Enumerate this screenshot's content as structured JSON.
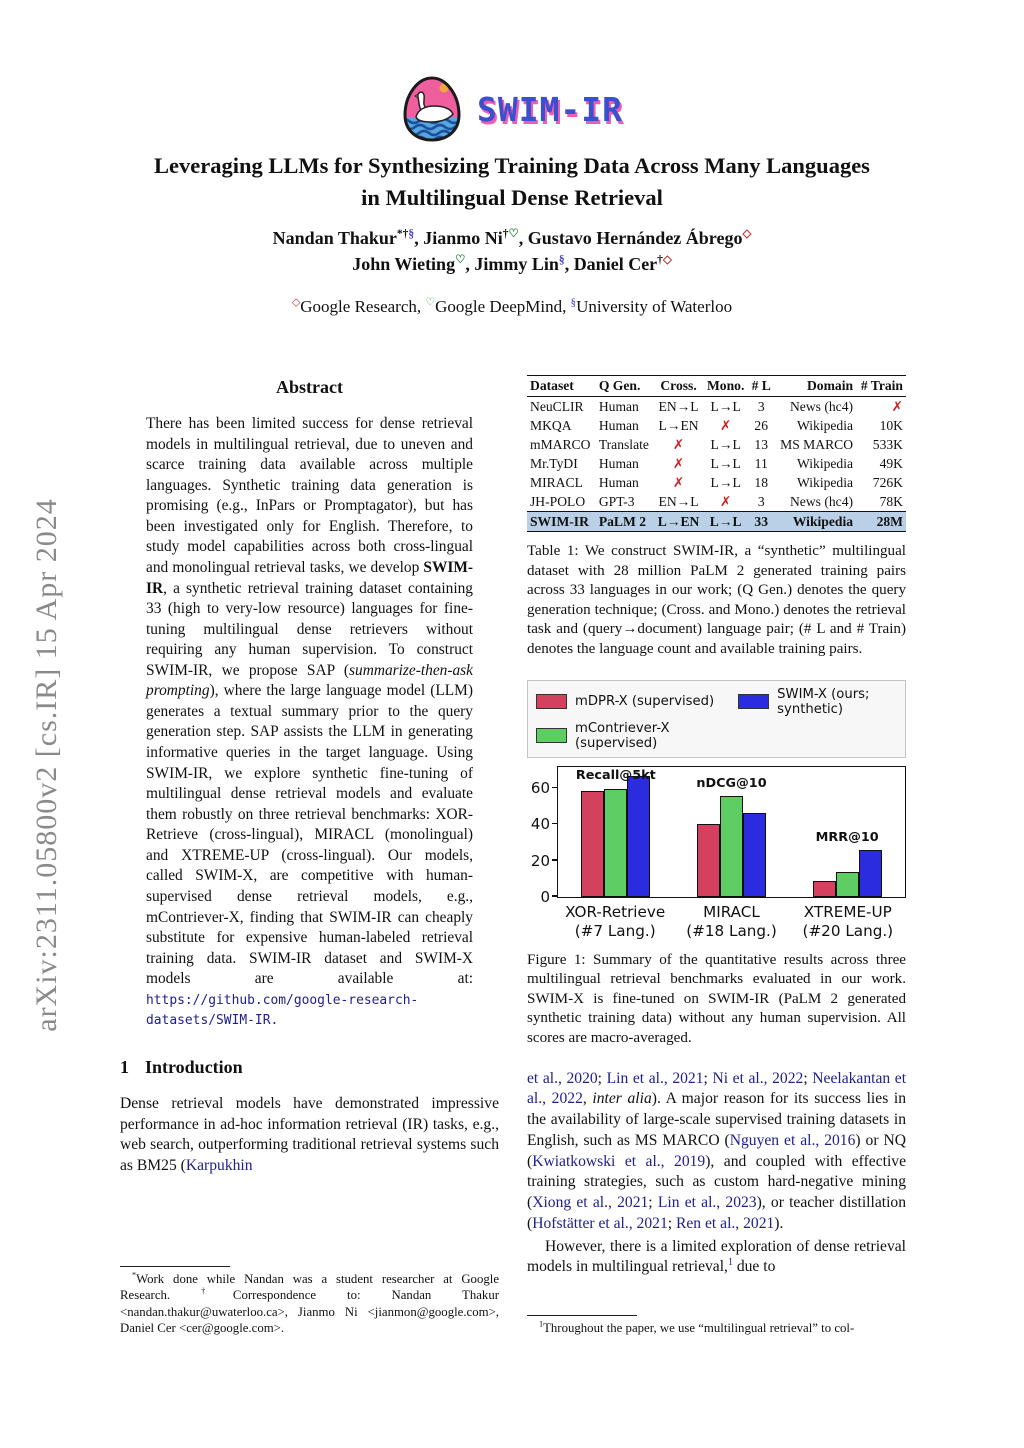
{
  "arxiv_watermark": "arXiv:2311.05800v2  [cs.IR]  15 Apr 2024",
  "logo": {
    "name": "SWIM-IR"
  },
  "header": {
    "title_line1": "Leveraging LLMs for Synthesizing Training Data Across Many Languages",
    "title_line2": "in Multilingual Dense Retrieval",
    "authors_line1": [
      {
        "t": "Nandan Thakur",
        "c": "bold"
      },
      {
        "t": "*†",
        "c": "sup"
      },
      {
        "t": "§",
        "c": "sup sym-blue"
      },
      {
        "t": ", ",
        "c": "bold"
      },
      {
        "t": "Jianmo Ni",
        "c": "bold"
      },
      {
        "t": "†",
        "c": "sup"
      },
      {
        "t": "♡",
        "c": "sup sym-green"
      },
      {
        "t": ", ",
        "c": "bold"
      },
      {
        "t": "Gustavo Hernández Ábrego",
        "c": "bold"
      },
      {
        "t": "◇",
        "c": "sup sym-red"
      }
    ],
    "authors_line2": [
      {
        "t": "John Wieting",
        "c": "bold"
      },
      {
        "t": "♡",
        "c": "sup sym-green"
      },
      {
        "t": ", ",
        "c": "bold"
      },
      {
        "t": "Jimmy Lin",
        "c": "bold"
      },
      {
        "t": "§",
        "c": "sup sym-blue"
      },
      {
        "t": ", ",
        "c": "bold"
      },
      {
        "t": "Daniel Cer",
        "c": "bold"
      },
      {
        "t": "†",
        "c": "sup"
      },
      {
        "t": "◇",
        "c": "sup sym-red"
      }
    ],
    "affiliations": [
      {
        "t": "◇",
        "c": "sup sym-red"
      },
      {
        "t": "Google Research, "
      },
      {
        "t": "♡",
        "c": "sup sym-green"
      },
      {
        "t": "Google DeepMind, "
      },
      {
        "t": "§",
        "c": "sup sym-blue"
      },
      {
        "t": "University of Waterloo"
      }
    ]
  },
  "abstract": {
    "heading": "Abstract",
    "runs": [
      {
        "t": "There has been limited success for dense retrieval models in multilingual retrieval, due to uneven and scarce training data available across multiple languages. Synthetic training data generation is promising (e.g., InPars or Promptagator), but has been investigated only for English. Therefore, to study model capabilities across both cross-lingual and monolingual retrieval tasks, we develop "
      },
      {
        "t": "SWIM-IR",
        "c": "bold"
      },
      {
        "t": ", a synthetic retrieval training dataset containing 33 (high to very-low resource) languages for fine-tuning multilingual dense retrievers without requiring any human supervision. To construct SWIM-IR, we propose SAP ("
      },
      {
        "t": "summarize-then-ask prompting",
        "c": "italic"
      },
      {
        "t": "), where the large language model (LLM) generates a textual summary prior to the query generation step. SAP assists the LLM in generating informative queries in the target language. Using SWIM-IR, we explore synthetic fine-tuning of multilingual dense retrieval models and evaluate them robustly on three retrieval benchmarks: XOR-Retrieve (cross-lingual), MIRACL (monolingual) and XTREME-UP (cross-lingual). Our models, called SWIM-X, are competitive with human-supervised dense retrieval models, e.g., mContriever-X, finding that SWIM-IR can cheaply substitute for expensive human-labeled retrieval training data. SWIM-IR dataset and SWIM-X models are available at: "
      },
      {
        "t": "https://github.com/",
        "c": "mono-link"
      },
      {
        "t": "google-research-datasets/SWIM-IR.",
        "c": "mono-link"
      }
    ]
  },
  "introduction": {
    "number": "1",
    "heading": "Introduction",
    "paragraph_runs": [
      {
        "t": "Dense retrieval models have demonstrated impressive performance in ad-hoc information retrieval (IR) tasks, e.g., web search, outperforming traditional retrieval systems such as BM25 ("
      },
      {
        "t": "Karpukhin",
        "c": "link"
      }
    ]
  },
  "footnote_left_runs": [
    {
      "t": "*",
      "c": "sup"
    },
    {
      "t": "Work done while Nandan was a student researcher at Google Research. "
    },
    {
      "t": "†",
      "c": "sup"
    },
    {
      "t": "Correspondence to:  Nandan Thakur <nandan.thakur@uwaterloo.ca>,  Jianmo Ni <jianmon@google.com>, Daniel Cer <cer@google.com>."
    }
  ],
  "table1": {
    "headers": [
      "Dataset",
      "Q Gen.",
      "Cross.",
      "Mono.",
      "# L",
      "Domain",
      "# Train"
    ],
    "rows": [
      {
        "cells": [
          "NeuCLIR",
          "Human",
          "EN→L",
          "L→L",
          "3",
          "News (hc4)",
          "✗"
        ],
        "highlight": false
      },
      {
        "cells": [
          "MKQA",
          "Human",
          "L→EN",
          "✗",
          "26",
          "Wikipedia",
          "10K"
        ],
        "highlight": false
      },
      {
        "cells": [
          "mMARCO",
          "Translate",
          "✗",
          "L→L",
          "13",
          "MS MARCO",
          "533K"
        ],
        "highlight": false
      },
      {
        "cells": [
          "Mr.TyDI",
          "Human",
          "✗",
          "L→L",
          "11",
          "Wikipedia",
          "49K"
        ],
        "highlight": false
      },
      {
        "cells": [
          "MIRACL",
          "Human",
          "✗",
          "L→L",
          "18",
          "Wikipedia",
          "726K"
        ],
        "highlight": false
      },
      {
        "cells": [
          "JH-POLO",
          "GPT-3",
          "EN→L",
          "✗",
          "3",
          "News (hc4)",
          "78K"
        ],
        "highlight": false
      },
      {
        "cells": [
          "SWIM-IR",
          "PaLM 2",
          "L→EN",
          "L→L",
          "33",
          "Wikipedia",
          "28M"
        ],
        "highlight": true
      }
    ],
    "caption": "Table 1: We construct SWIM-IR, a “synthetic” multilingual dataset with 28 million PaLM 2 generated training pairs across 33 languages in our work; (Q Gen.) denotes the query generation technique; (Cross. and Mono.) denotes the retrieval task and (query→document) language pair; (# L and # Train) denotes the language count and available training pairs."
  },
  "chart_data": {
    "type": "bar",
    "categories": [
      "XOR-Retrieve",
      "MIRACL",
      "XTREME-UP"
    ],
    "category_sublabels": [
      "(#7 Lang.)",
      "(#18 Lang.)",
      "(#20 Lang.)"
    ],
    "series": [
      {
        "name": "mDPR-X (supervised)",
        "color": "#d4415f",
        "values": [
          58.5,
          40,
          8.5
        ]
      },
      {
        "name": "mContriever-X (supervised)",
        "color": "#5ecd63",
        "values": [
          59.5,
          55.5,
          13.5
        ]
      },
      {
        "name": "SWIM-X (ours; synthetic)",
        "color": "#2b2bdf",
        "values": [
          67,
          46.5,
          26
        ]
      }
    ],
    "group_annotations": [
      "Recall@5kt",
      "nDCG@10",
      "MRR@10"
    ],
    "yticks": [
      0,
      20,
      40,
      60
    ],
    "ylim": [
      0,
      72
    ],
    "grid": false,
    "legend_position": "top"
  },
  "figure1": {
    "caption": "Figure 1: Summary of the quantitative results across three multilingual retrieval benchmarks evaluated in our work. SWIM-X is fine-tuned on SWIM-IR (PaLM 2 generated synthetic training data) without any human supervision. All scores are macro-averaged."
  },
  "right_column": {
    "paragraph1_runs": [
      {
        "t": "et al., 2020",
        "c": "link"
      },
      {
        "t": "; "
      },
      {
        "t": "Lin et al., 2021",
        "c": "link"
      },
      {
        "t": "; "
      },
      {
        "t": "Ni et al., 2022",
        "c": "link"
      },
      {
        "t": "; "
      },
      {
        "t": "Neelakantan et al., 2022",
        "c": "link"
      },
      {
        "t": ", "
      },
      {
        "t": "inter alia",
        "c": "italic"
      },
      {
        "t": ").  A major reason for its success lies in the availability of large-scale supervised training datasets in English, such as MS MARCO ("
      },
      {
        "t": "Nguyen et al., 2016",
        "c": "link"
      },
      {
        "t": ") or NQ ("
      },
      {
        "t": "Kwiatkowski et al., 2019",
        "c": "link"
      },
      {
        "t": "), and coupled with effective training strategies, such as custom hard-negative mining ("
      },
      {
        "t": "Xiong et al., 2021",
        "c": "link"
      },
      {
        "t": "; "
      },
      {
        "t": "Lin et al., 2023",
        "c": "link"
      },
      {
        "t": "), or teacher distillation ("
      },
      {
        "t": "Hofstätter et al., 2021",
        "c": "link"
      },
      {
        "t": "; "
      },
      {
        "t": "Ren et al., 2021",
        "c": "link"
      },
      {
        "t": ")."
      }
    ],
    "paragraph2_runs": [
      {
        "t": "However, there is a limited exploration of dense retrieval models in multilingual retrieval,"
      },
      {
        "t": "1",
        "c": "sup link"
      },
      {
        "t": " due to"
      }
    ]
  },
  "footnote_right_runs": [
    {
      "t": "1",
      "c": "sup"
    },
    {
      "t": "Throughout the paper, we use “multilingual retrieval” to col-"
    }
  ]
}
